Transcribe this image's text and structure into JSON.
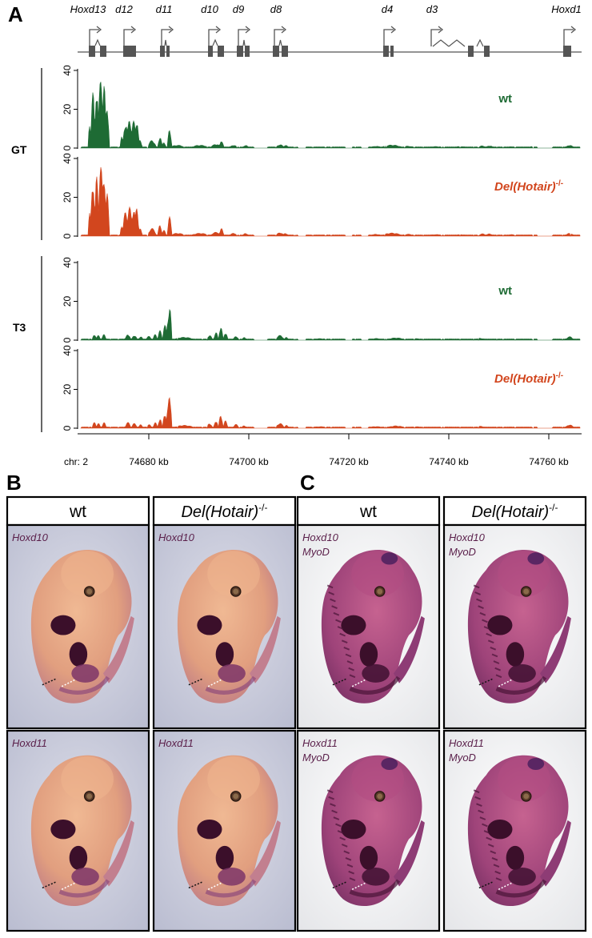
{
  "panels": {
    "a": "A",
    "b": "B",
    "c": "C"
  },
  "genes": [
    {
      "label": "Hoxd13",
      "x": 110
    },
    {
      "label": "d12",
      "x": 155
    },
    {
      "label": "d11",
      "x": 205
    },
    {
      "label": "d10",
      "x": 262
    },
    {
      "label": "d9",
      "x": 298
    },
    {
      "label": "d8",
      "x": 345
    },
    {
      "label": "d4",
      "x": 484
    },
    {
      "label": "d3",
      "x": 540
    },
    {
      "label": "Hoxd1",
      "x": 708
    }
  ],
  "tracks": [
    {
      "group": "GT",
      "sample": "wt",
      "sup": "",
      "color": "#1e6b34",
      "profile": "gt"
    },
    {
      "group": "GT",
      "sample": "Del(Hotair)",
      "sup": "-/-",
      "color": "#d2461e",
      "profile": "gt"
    },
    {
      "group": "T3",
      "sample": "wt",
      "sup": "",
      "color": "#1e6b34",
      "profile": "t3"
    },
    {
      "group": "T3",
      "sample": "Del(Hotair)",
      "sup": "-/-",
      "color": "#d2461e",
      "profile": "t3"
    }
  ],
  "track_groups": [
    "GT",
    "T3"
  ],
  "y_ticks": [
    "40",
    "20",
    "0"
  ],
  "x_axis": {
    "chrom_label": "chr: 2",
    "ticks": [
      "74680 kb",
      "74700 kb",
      "74720 kb",
      "74740 kb",
      "74760 kb"
    ]
  },
  "panel_b": {
    "headers": {
      "wt": "wt",
      "mutant": "Del(Hotair)",
      "mutant_sup": "-/-"
    },
    "rows": [
      {
        "probe": "Hoxd10",
        "probe2": ""
      },
      {
        "probe": "Hoxd11",
        "probe2": ""
      }
    ]
  },
  "panel_c": {
    "headers": {
      "wt": "wt",
      "mutant": "Del(Hotair)",
      "mutant_sup": "-/-"
    },
    "rows": [
      {
        "probe": "Hoxd10",
        "probe2": "MyoD"
      },
      {
        "probe": "Hoxd11",
        "probe2": "MyoD"
      }
    ]
  },
  "colors": {
    "wt": "#1e6b34",
    "mutant": "#d2461e",
    "stain_light": "#e7a27d",
    "stain_purple": "#8e3c75",
    "stain_dark": "#3b0f2a",
    "bg_b": "#c5c7d8",
    "bg_c": "#f2f2f2"
  }
}
